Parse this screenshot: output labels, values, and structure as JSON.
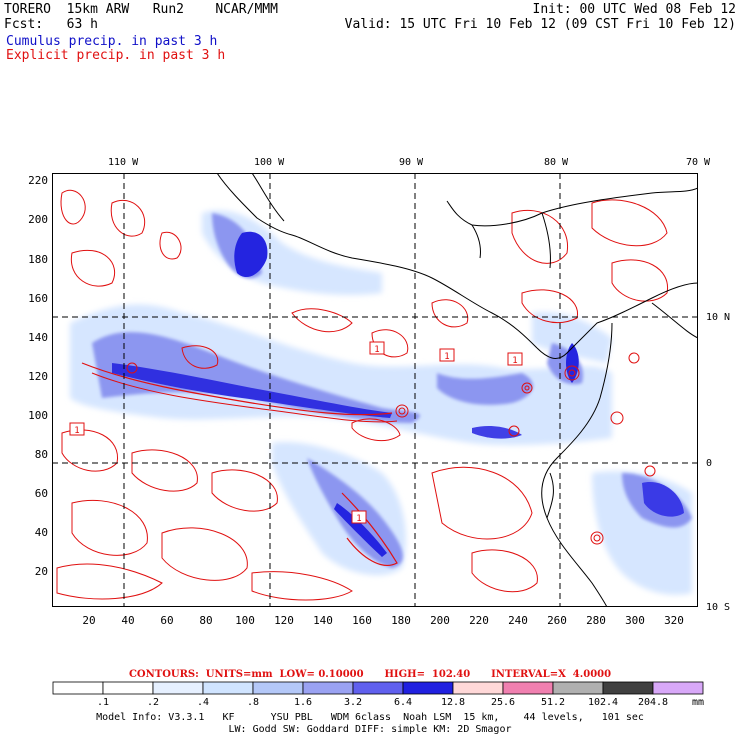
{
  "header": {
    "model": "TORERO  15km ARW   Run2    NCAR/MMM",
    "init": "Init: 00 UTC Wed 08 Feb 12",
    "fcst": "Fcst:   63 h",
    "valid": "Valid: 15 UTC Fri 10 Feb 12 (09 CST Fri 10 Feb 12)",
    "cumulus": "Cumulus precip. in past 3 h",
    "explicit": "Explicit precip. in past 3 h"
  },
  "colors": {
    "cumulus_text": "#1010c8",
    "explicit_text": "#e01010",
    "contour": "#e01010",
    "coast": "#000000"
  },
  "axes": {
    "y_ticks": [
      "220",
      "200",
      "180",
      "160",
      "140",
      "120",
      "100",
      "80",
      "60",
      "40",
      "20"
    ],
    "x_ticks": [
      "20",
      "40",
      "60",
      "80",
      "100",
      "120",
      "140",
      "160",
      "180",
      "200",
      "220",
      "240",
      "260",
      "280",
      "300",
      "320"
    ],
    "lon_labels": [
      "110 W",
      "100 W",
      "90 W",
      "80 W",
      "70 W"
    ],
    "lat_labels": [
      "10 N",
      "0",
      "10 S"
    ]
  },
  "contour_info": "CONTOURS:  UNITS=mm  LOW= 0.10000      HIGH=  102.40      INTERVAL=X  4.0000",
  "colorbar": {
    "labels": [
      ".1",
      ".2",
      ".4",
      ".8",
      "1.6",
      "3.2",
      "6.4",
      "12.8",
      "25.6",
      "51.2",
      "102.4",
      "204.8"
    ],
    "colors": [
      "#ffffff",
      "#ffffff",
      "#e6f0ff",
      "#d0e4ff",
      "#b4c8f8",
      "#9aa2f2",
      "#6060ee",
      "#2020e0",
      "#ffd8d8",
      "#f080b0",
      "#b0b0b0",
      "#404040",
      "#d8a8f8"
    ],
    "unit": "mm"
  },
  "model_info_line1": "Model Info: V3.3.1   KF      YSU PBL   WDM 6class  Noah LSM  15 km,    44 levels,   101 sec",
  "model_info_line2": "LW: Godd SW: Goddard DIFF: simple KM: 2D Smagor",
  "map_labels": {
    "boxed_one": "1"
  }
}
